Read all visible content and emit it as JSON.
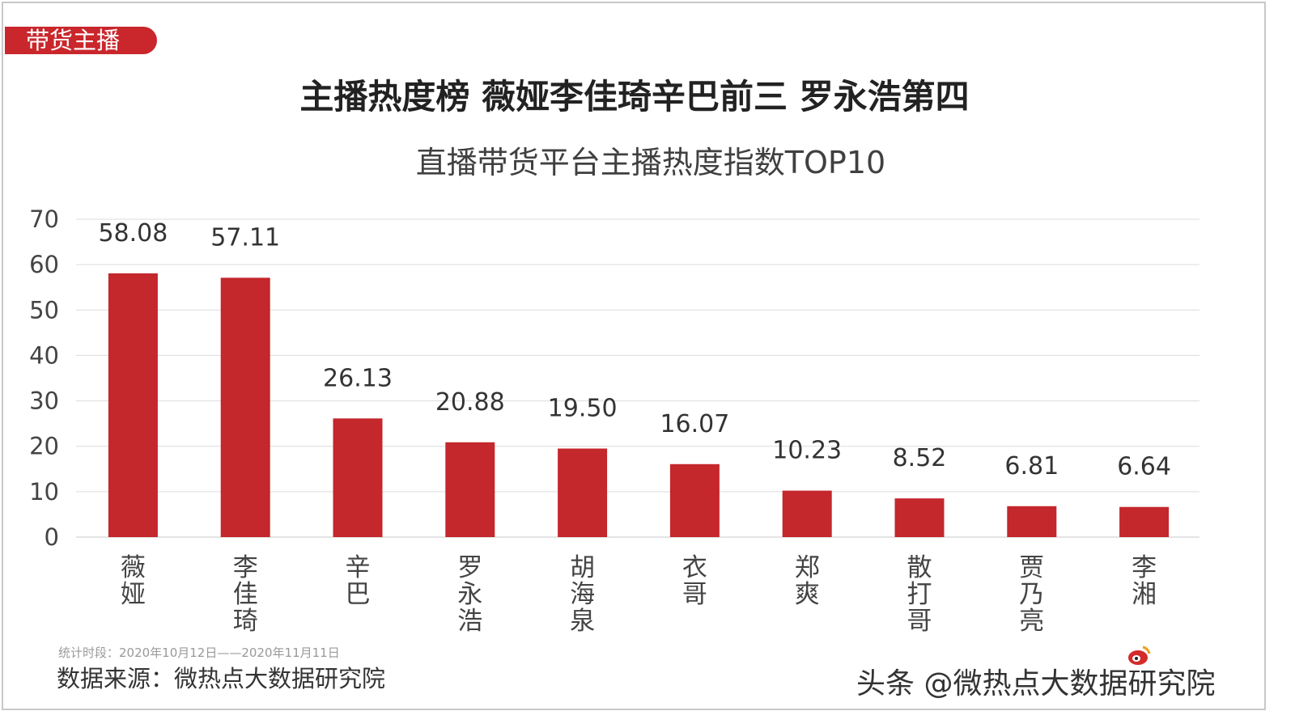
{
  "badge": "带货主播",
  "headline": "主播热度榜 薇娅李佳琦辛巴前三 罗永浩第四",
  "footer": {
    "period": "统计时段：2020年10月12日——2020年11月11日",
    "source": "数据来源：微热点大数据研究院",
    "watermark": "头条 @微热点大数据研究院",
    "logo_text": "微热点"
  },
  "colors": {
    "bar": "#c4272c",
    "badge": "#c9272c",
    "grid": "#dcdcdc"
  },
  "chart_data": {
    "type": "bar",
    "title": "直播带货平台主播热度指数TOP10",
    "categories": [
      "薇娅",
      "李佳琦",
      "辛巴",
      "罗永浩",
      "胡海泉",
      "衣哥",
      "郑爽",
      "散打哥",
      "贾乃亮",
      "李湘"
    ],
    "values": [
      58.08,
      57.11,
      26.13,
      20.88,
      19.5,
      16.07,
      10.23,
      8.52,
      6.81,
      6.64
    ],
    "value_labels": [
      "58.08",
      "57.11",
      "26.13",
      "20.88",
      "19.50",
      "16.07",
      "10.23",
      "8.52",
      "6.81",
      "6.64"
    ],
    "ylim": [
      0,
      70
    ],
    "yticks": [
      0,
      10,
      20,
      30,
      40,
      50,
      60,
      70
    ],
    "grid": true,
    "xlabel": "",
    "ylabel": ""
  }
}
